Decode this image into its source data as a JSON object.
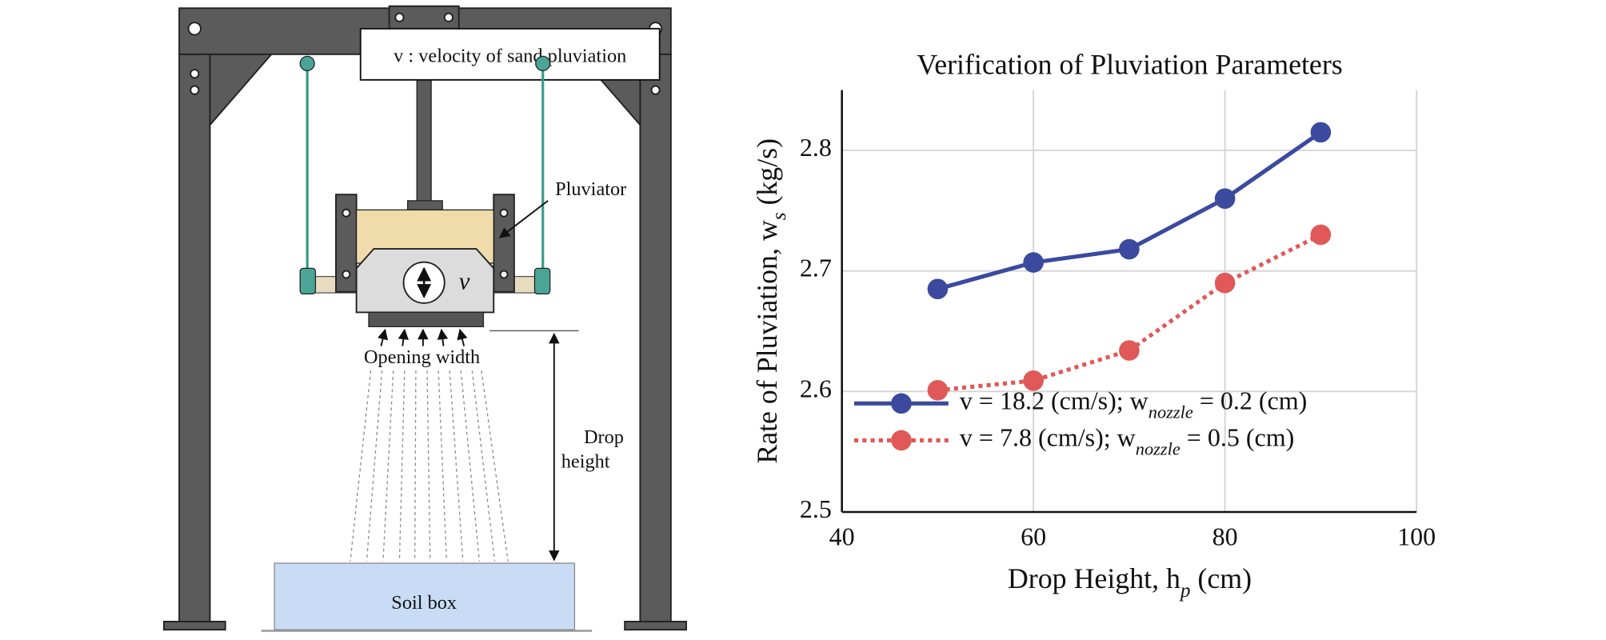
{
  "diagram": {
    "label_box": "v : velocity of sand pluviation",
    "pluviator": "Pluviator",
    "velocity_symbol": "v",
    "opening_width": "Opening width",
    "drop_height": [
      "Drop",
      "height"
    ],
    "soil_box": "Soil box"
  },
  "chart_data": {
    "type": "line",
    "title": "Verification of Pluviation Parameters",
    "x_label": "Drop Height, h_{p} (cm)",
    "y_label": "Rate of Pluviation, w_{s} (kg/s)",
    "x": [
      50,
      60,
      70,
      80,
      90
    ],
    "series": [
      {
        "name": "v = 18.2 (cm/s); w_{nozzle} = 0.2 (cm)",
        "color": "#3b4a9e",
        "style": "solid",
        "values": [
          2.685,
          2.707,
          2.718,
          2.76,
          2.815
        ]
      },
      {
        "name": "v = 7.8 (cm/s); w_{nozzle} = 0.5 (cm)",
        "color": "#e05858",
        "style": "dotted",
        "values": [
          2.601,
          2.609,
          2.634,
          2.69,
          2.73
        ]
      }
    ],
    "xlim": [
      40,
      100
    ],
    "xticks": [
      40,
      60,
      80,
      100
    ],
    "ylim": [
      2.5,
      2.85
    ],
    "yticks": [
      {
        "value": 2.5,
        "label": "2.5"
      },
      2.6,
      2.7,
      2.8
    ],
    "grid": true,
    "legend": "lower left"
  }
}
